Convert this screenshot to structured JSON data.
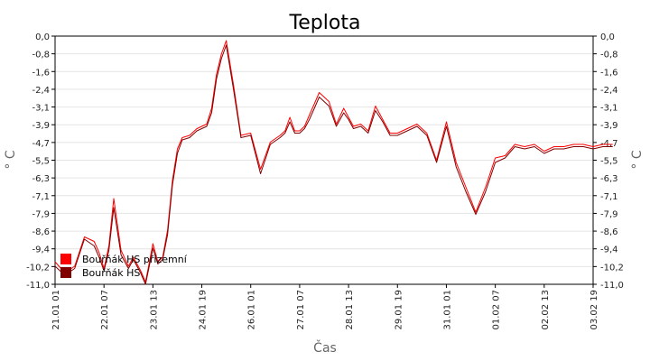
{
  "chart_data": {
    "type": "line",
    "title": "Teplota",
    "xlabel": "Čas",
    "ylabel": "° C",
    "ylim": [
      -11.0,
      0.0
    ],
    "y_ticks": [
      "0,0",
      "-0,8",
      "-1,6",
      "-2,4",
      "-3,1",
      "-3,9",
      "-4,7",
      "-5,5",
      "-6,3",
      "-7,1",
      "-7,9",
      "-8,6",
      "-9,4",
      "-10,2",
      "-11,0"
    ],
    "x_ticks": [
      "21.01 01",
      "22.01 07",
      "23.01 13",
      "24.01 19",
      "26.01 01",
      "27.01 07",
      "28.01 13",
      "29.01 19",
      "31.01 01",
      "01.02 07",
      "02.02 13",
      "03.02 19"
    ],
    "grid": true,
    "legend_position": "bottom-left",
    "colors": {
      "series_1": "#ff0000",
      "series_2": "#800000"
    },
    "series": [
      {
        "name": "Bouřňák HS přízemní",
        "x": [
          0.0,
          0.2,
          0.4,
          0.6,
          0.8,
          0.9,
          1.0,
          1.1,
          1.2,
          1.35,
          1.5,
          1.6,
          1.75,
          1.85,
          2.0,
          2.1,
          2.2,
          2.3,
          2.4,
          2.5,
          2.6,
          2.75,
          2.9,
          3.0,
          3.1,
          3.2,
          3.3,
          3.4,
          3.5,
          3.65,
          3.8,
          4.0,
          4.2,
          4.4,
          4.6,
          4.7,
          4.8,
          4.9,
          5.0,
          5.1,
          5.2,
          5.3,
          5.4,
          5.5,
          5.6,
          5.75,
          5.9,
          6.0,
          6.1,
          6.25,
          6.4,
          6.55,
          6.7,
          6.85,
          7.0,
          7.2,
          7.4,
          7.6,
          7.8,
          8.0,
          8.2,
          8.4,
          8.6,
          8.8,
          9.0,
          9.2,
          9.4,
          9.6,
          9.8,
          10.0,
          10.2,
          10.4,
          10.6,
          10.8,
          11.0,
          11.2,
          11.4
        ],
        "values": [
          -10.0,
          -10.5,
          -10.2,
          -8.9,
          -9.1,
          -9.6,
          -10.3,
          -9.3,
          -7.2,
          -9.5,
          -10.2,
          -9.8,
          -10.4,
          -10.9,
          -9.2,
          -10.0,
          -9.8,
          -8.6,
          -6.4,
          -5.0,
          -4.5,
          -4.4,
          -4.1,
          -4.0,
          -3.9,
          -3.2,
          -1.7,
          -0.8,
          -0.2,
          -2.2,
          -4.4,
          -4.3,
          -5.9,
          -4.7,
          -4.4,
          -4.2,
          -3.6,
          -4.2,
          -4.2,
          -4.0,
          -3.5,
          -3.0,
          -2.5,
          -2.7,
          -2.9,
          -3.9,
          -3.2,
          -3.6,
          -4.0,
          -3.9,
          -4.2,
          -3.1,
          -3.7,
          -4.3,
          -4.3,
          -4.1,
          -3.9,
          -4.3,
          -5.5,
          -3.8,
          -5.6,
          -6.7,
          -7.8,
          -6.7,
          -5.4,
          -5.3,
          -4.8,
          -4.9,
          -4.8,
          -5.1,
          -4.9,
          -4.9,
          -4.8,
          -4.8,
          -4.9,
          -4.8,
          -4.8
        ]
      },
      {
        "name": "Bouřňák HS",
        "x": [
          0.0,
          0.2,
          0.4,
          0.6,
          0.8,
          0.9,
          1.0,
          1.1,
          1.2,
          1.35,
          1.5,
          1.6,
          1.75,
          1.85,
          2.0,
          2.1,
          2.2,
          2.3,
          2.4,
          2.5,
          2.6,
          2.75,
          2.9,
          3.0,
          3.1,
          3.2,
          3.3,
          3.4,
          3.5,
          3.65,
          3.8,
          4.0,
          4.2,
          4.4,
          4.6,
          4.7,
          4.8,
          4.9,
          5.0,
          5.1,
          5.2,
          5.3,
          5.4,
          5.5,
          5.6,
          5.75,
          5.9,
          6.0,
          6.1,
          6.25,
          6.4,
          6.55,
          6.7,
          6.85,
          7.0,
          7.2,
          7.4,
          7.6,
          7.8,
          8.0,
          8.2,
          8.4,
          8.6,
          8.8,
          9.0,
          9.2,
          9.4,
          9.6,
          9.8,
          10.0,
          10.2,
          10.4,
          10.6,
          10.8,
          11.0,
          11.2,
          11.4
        ],
        "values": [
          -10.2,
          -10.6,
          -10.3,
          -9.0,
          -9.3,
          -9.8,
          -10.4,
          -9.5,
          -7.6,
          -9.7,
          -10.3,
          -9.9,
          -10.5,
          -11.0,
          -9.4,
          -10.1,
          -9.9,
          -8.8,
          -6.6,
          -5.2,
          -4.6,
          -4.5,
          -4.2,
          -4.1,
          -4.0,
          -3.4,
          -1.9,
          -1.0,
          -0.4,
          -2.4,
          -4.5,
          -4.4,
          -6.1,
          -4.8,
          -4.5,
          -4.3,
          -3.8,
          -4.3,
          -4.3,
          -4.1,
          -3.7,
          -3.2,
          -2.7,
          -2.9,
          -3.1,
          -4.0,
          -3.4,
          -3.7,
          -4.1,
          -4.0,
          -4.3,
          -3.3,
          -3.8,
          -4.4,
          -4.4,
          -4.2,
          -4.0,
          -4.4,
          -5.6,
          -4.0,
          -5.8,
          -6.9,
          -7.9,
          -6.9,
          -5.6,
          -5.4,
          -4.9,
          -5.0,
          -4.9,
          -5.2,
          -5.0,
          -5.0,
          -4.9,
          -4.9,
          -5.0,
          -4.9,
          -4.9
        ]
      }
    ]
  }
}
